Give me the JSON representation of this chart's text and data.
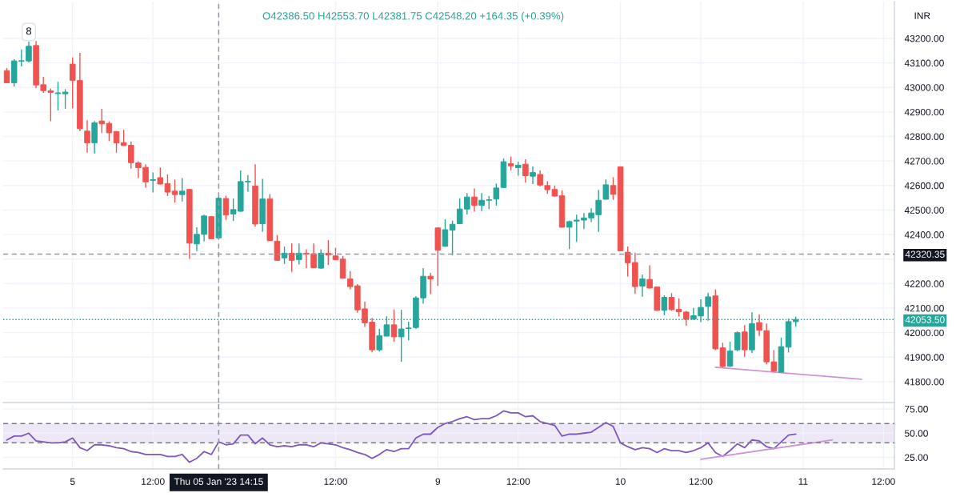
{
  "chart_data": [
    {
      "type": "candlestick",
      "annotations": [
        "O42386.50 H42553.70 L42381.75 C42548.20 +164.35 (+0.39%)",
        "8"
      ],
      "ylabel": "INR",
      "categories": [
        null,
        null,
        null,
        null,
        null,
        null,
        null,
        null,
        null,
        "5",
        null,
        null,
        null,
        null,
        null,
        null,
        null,
        null,
        null,
        null,
        "12:00",
        null,
        null,
        null,
        null,
        null,
        null,
        null,
        null,
        "Thu 05 Jan '23 14:15",
        null,
        null,
        null,
        null,
        null,
        null,
        null,
        null,
        null,
        null,
        null,
        null,
        null,
        null,
        null,
        "12:00",
        null,
        null,
        null,
        null,
        null,
        null,
        null,
        null,
        null,
        null,
        null,
        null,
        null,
        "9",
        null,
        null,
        null,
        null,
        null,
        null,
        null,
        null,
        null,
        null,
        "12:00",
        null,
        null,
        null,
        null,
        null,
        null,
        null,
        null,
        null,
        null,
        null,
        null,
        null,
        "10",
        null,
        null,
        null,
        null,
        null,
        null,
        null,
        null,
        null,
        null,
        "12:00",
        null,
        null,
        null,
        null,
        null,
        null,
        null,
        null,
        null,
        null,
        null,
        null,
        null,
        "11",
        null,
        null,
        null,
        null,
        null,
        null,
        null,
        null,
        null,
        null,
        "12:00",
        null
      ],
      "ohlc": [
        [
          43068,
          43079,
          43018,
          43019
        ],
        [
          43019,
          43115,
          43003,
          43108
        ],
        [
          43107,
          43155,
          43086,
          43109
        ],
        [
          43108,
          43187,
          43102,
          43168
        ],
        [
          43171,
          43189,
          42997,
          43010
        ],
        [
          43011,
          43043,
          42978,
          42987
        ],
        [
          42986,
          42996,
          42862,
          42980
        ],
        [
          42975,
          43023,
          42906,
          42978
        ],
        [
          42974,
          42993,
          42913,
          42981
        ],
        [
          43095,
          43122,
          42915,
          43029
        ],
        [
          43028,
          43141,
          42821,
          42832
        ],
        [
          42822,
          42866,
          42734,
          42774
        ],
        [
          42774,
          42863,
          42731,
          42856
        ],
        [
          42863,
          42913,
          42814,
          42852
        ],
        [
          42853,
          42862,
          42781,
          42815
        ],
        [
          42820,
          42822,
          42734,
          42774
        ],
        [
          42775,
          42827,
          42762,
          42763
        ],
        [
          42764,
          42780,
          42669,
          42693
        ],
        [
          42692,
          42699,
          42630,
          42673
        ],
        [
          42674,
          42687,
          42591,
          42615
        ],
        [
          42621,
          42653,
          42572,
          42624
        ],
        [
          42632,
          42674,
          42604,
          42606
        ],
        [
          42608,
          42645,
          42557,
          42573
        ],
        [
          42577,
          42624,
          42531,
          42563
        ],
        [
          42563,
          42630,
          42535,
          42577
        ],
        [
          42584,
          42586,
          42301,
          42365
        ],
        [
          42362,
          42430,
          42333,
          42401
        ],
        [
          42401,
          42481,
          42372,
          42476
        ],
        [
          42473,
          42476,
          42382,
          42383
        ],
        [
          42386.5,
          42553.7,
          42381.75,
          42548.2
        ],
        [
          42547,
          42558,
          42460,
          42480
        ],
        [
          42484,
          42547,
          42455,
          42502
        ],
        [
          42495,
          42661,
          42493,
          42616
        ],
        [
          42615,
          42643,
          42575,
          42617
        ],
        [
          42598,
          42687,
          42432,
          42443
        ],
        [
          42444,
          42627,
          42412,
          42545
        ],
        [
          42545,
          42565,
          42374,
          42375
        ],
        [
          42373,
          42398,
          42293,
          42295
        ],
        [
          42305,
          42351,
          42280,
          42324
        ],
        [
          42324,
          42364,
          42248,
          42295
        ],
        [
          42298,
          42364,
          42278,
          42324
        ],
        [
          42324,
          42340,
          42263,
          42320
        ],
        [
          42322,
          42364,
          42264,
          42265
        ],
        [
          42263,
          42340,
          42261,
          42324
        ],
        [
          42324,
          42377,
          42276,
          42317
        ],
        [
          42313,
          42346,
          42297,
          42298
        ],
        [
          42300,
          42313,
          42220,
          42222
        ],
        [
          42219,
          42251,
          42177,
          42188
        ],
        [
          42191,
          42198,
          42081,
          42093
        ],
        [
          42097,
          42126,
          42023,
          42040
        ],
        [
          42043,
          42060,
          41920,
          41930
        ],
        [
          41930,
          42015,
          41923,
          41988
        ],
        [
          41986,
          42067,
          41985,
          42032
        ],
        [
          42032,
          42095,
          41963,
          41983
        ],
        [
          41983,
          42093,
          41881,
          42015
        ],
        [
          42017,
          42045,
          41969,
          42019
        ],
        [
          42021,
          42149,
          42015,
          42142
        ],
        [
          42142,
          42263,
          42118,
          42230
        ],
        [
          42230,
          42244,
          42157,
          42219
        ],
        [
          42427,
          42430,
          42191,
          42337
        ],
        [
          42352,
          42462,
          42351,
          42420
        ],
        [
          42418,
          42457,
          42315,
          42442
        ],
        [
          42444,
          42548,
          42443,
          42504
        ],
        [
          42504,
          42569,
          42482,
          42553
        ],
        [
          42553,
          42588,
          42493,
          42519
        ],
        [
          42519,
          42569,
          42496,
          42540
        ],
        [
          42540,
          42557,
          42504,
          42542
        ],
        [
          42545,
          42608,
          42518,
          42590
        ],
        [
          42592,
          42711,
          42591,
          42697
        ],
        [
          42689,
          42718,
          42662,
          42680
        ],
        [
          42673,
          42697,
          42640,
          42683
        ],
        [
          42687,
          42707,
          42612,
          42640
        ],
        [
          42638,
          42678,
          42606,
          42653
        ],
        [
          42645,
          42662,
          42596,
          42602
        ],
        [
          42600,
          42617,
          42566,
          42583
        ],
        [
          42584,
          42600,
          42553,
          42557
        ],
        [
          42558,
          42580,
          42429,
          42430
        ],
        [
          42430,
          42457,
          42341,
          42453
        ],
        [
          42455,
          42481,
          42370,
          42459
        ],
        [
          42459,
          42488,
          42422,
          42468
        ],
        [
          42468,
          42507,
          42451,
          42488
        ],
        [
          42481,
          42582,
          42411,
          42540
        ],
        [
          42544,
          42625,
          42543,
          42603
        ],
        [
          42600,
          42634,
          42542,
          42564
        ],
        [
          42676,
          42678,
          42333,
          42334
        ],
        [
          42328,
          42351,
          42229,
          42285
        ],
        [
          42286,
          42326,
          42158,
          42188
        ],
        [
          42190,
          42237,
          42147,
          42219
        ],
        [
          42217,
          42275,
          42180,
          42182
        ],
        [
          42186,
          42188,
          42089,
          42091
        ],
        [
          42091,
          42152,
          42071,
          42144
        ],
        [
          42144,
          42161,
          42089,
          42094
        ],
        [
          42095,
          42140,
          42066,
          42085
        ],
        [
          42084,
          42089,
          42028,
          42055
        ],
        [
          42055,
          42101,
          42053,
          42069
        ],
        [
          42068,
          42136,
          42043,
          42103
        ],
        [
          42107,
          42163,
          42049,
          42146
        ],
        [
          42150,
          42176,
          41929,
          41934
        ],
        [
          41938,
          41959,
          41858,
          41862
        ],
        [
          41863,
          41963,
          41860,
          41925
        ],
        [
          41930,
          42005,
          41924,
          42000
        ],
        [
          42003,
          42031,
          41901,
          41930
        ],
        [
          41930,
          42083,
          41917,
          42037
        ],
        [
          42041,
          42075,
          41987,
          42010
        ],
        [
          42008,
          42037,
          41871,
          41881
        ],
        [
          41881,
          41929,
          41841,
          41843
        ],
        [
          41839,
          41980,
          41837,
          41943
        ],
        [
          41941,
          42057,
          41919,
          42045
        ],
        [
          42045,
          42065,
          42023,
          42053.5
        ],
        null,
        null,
        null,
        null,
        null,
        null,
        null,
        null,
        null,
        null,
        null,
        null,
        null
      ],
      "colors": [
        "#ef5350",
        "#26a69a",
        "#26a69a",
        "#26a69a",
        "#ef5350",
        "#ef5350",
        "#ef5350",
        "#26a69a",
        "#26a69a",
        "#ef5350",
        "#ef5350",
        "#ef5350",
        "#26a69a",
        "#ef5350",
        "#ef5350",
        "#ef5350",
        "#ef5350",
        "#ef5350",
        "#ef5350",
        "#ef5350",
        "#26a69a",
        "#ef5350",
        "#ef5350",
        "#ef5350",
        "#26a69a",
        "#ef5350",
        "#26a69a",
        "#26a69a",
        "#ef5350",
        "#26a69a",
        "#ef5350",
        "#26a69a",
        "#26a69a",
        "#26a69a",
        "#ef5350",
        "#26a69a",
        "#ef5350",
        "#ef5350",
        "#26a69a",
        "#ef5350",
        "#26a69a",
        "#ef5350",
        "#ef5350",
        "#26a69a",
        "#ef5350",
        "#ef5350",
        "#ef5350",
        "#ef5350",
        "#ef5350",
        "#ef5350",
        "#ef5350",
        "#26a69a",
        "#26a69a",
        "#ef5350",
        "#26a69a",
        "#26a69a",
        "#26a69a",
        "#26a69a",
        "#ef5350",
        "#ef5350",
        "#26a69a",
        "#26a69a",
        "#26a69a",
        "#26a69a",
        "#ef5350",
        "#26a69a",
        "#26a69a",
        "#26a69a",
        "#26a69a",
        "#ef5350",
        "#26a69a",
        "#ef5350",
        "#26a69a",
        "#ef5350",
        "#ef5350",
        "#ef5350",
        "#ef5350",
        "#26a69a",
        "#26a69a",
        "#26a69a",
        "#26a69a",
        "#26a69a",
        "#26a69a",
        "#ef5350",
        "#ef5350",
        "#ef5350",
        "#ef5350",
        "#26a69a",
        "#ef5350",
        "#ef5350",
        "#26a69a",
        "#ef5350",
        "#ef5350",
        "#ef5350",
        "#26a69a",
        "#26a69a",
        "#26a69a",
        "#ef5350",
        "#ef5350",
        "#26a69a",
        "#26a69a",
        "#ef5350",
        "#26a69a",
        "#ef5350",
        "#ef5350",
        "#ef5350",
        "#26a69a",
        "#26a69a",
        "#26a69a",
        null,
        null,
        null,
        null,
        null,
        null,
        null,
        null,
        null,
        null,
        null,
        null,
        null
      ],
      "series": [
        {
          "type": "line",
          "color": "#ce93d8",
          "values": [
            null,
            null,
            null,
            null,
            null,
            null,
            null,
            null,
            null,
            null,
            null,
            null,
            null,
            null,
            null,
            null,
            null,
            null,
            null,
            null,
            null,
            null,
            null,
            null,
            null,
            null,
            null,
            null,
            null,
            null,
            null,
            null,
            null,
            null,
            null,
            null,
            null,
            null,
            null,
            null,
            null,
            null,
            null,
            null,
            null,
            null,
            null,
            null,
            null,
            null,
            null,
            null,
            null,
            null,
            null,
            null,
            null,
            null,
            null,
            null,
            null,
            null,
            null,
            null,
            null,
            null,
            null,
            null,
            null,
            null,
            null,
            null,
            null,
            null,
            null,
            null,
            null,
            null,
            null,
            null,
            null,
            null,
            null,
            null,
            null,
            null,
            null,
            null,
            null,
            null,
            null,
            null,
            null,
            null,
            null,
            null,
            null,
            41859,
            null,
            null,
            null,
            null,
            null,
            null,
            null,
            null,
            null,
            null,
            null,
            null,
            null,
            null,
            null,
            null,
            null,
            null,
            null,
            41810,
            null,
            null,
            null,
            null
          ]
        }
      ],
      "ylim": [
        41715,
        43350
      ],
      "yticks": [
        {
          "value": 41800,
          "label": "41800.00"
        },
        {
          "value": 41900,
          "label": "41900.00"
        },
        {
          "value": 42000,
          "label": "42000.00"
        },
        {
          "value": 42100,
          "label": "42100.00"
        },
        {
          "value": 42200,
          "label": "42200.00"
        },
        {
          "value": 42300,
          "label": null
        },
        {
          "value": 42400,
          "label": "42400.00"
        },
        {
          "value": 42500,
          "label": "42500.00"
        },
        {
          "value": 42600,
          "label": "42600.00"
        },
        {
          "value": 42700,
          "label": "42700.00"
        },
        {
          "value": 42800,
          "label": "42800.00"
        },
        {
          "value": 42900,
          "label": "42900.00"
        },
        {
          "value": 43000,
          "label": "43000.00"
        },
        {
          "value": 43100,
          "label": "43100.00"
        },
        {
          "value": 43200,
          "label": "43200.00"
        }
      ],
      "ref_lines": [
        {
          "axis": "x",
          "value": "Thu 05 Jan '23 14:15",
          "color": "#9598a1",
          "line_style": "dashed"
        },
        {
          "axis": "y",
          "value": 42320.35,
          "label": "42320.35",
          "color": "#9598a1",
          "line_style": "dashed"
        },
        {
          "axis": "y",
          "value": 42053.5,
          "label": "42053.50",
          "color": "#26a69a",
          "line_style": "dotted"
        }
      ],
      "grid": true,
      "tick_labels": "y"
    },
    {
      "type": "line",
      "categories": [
        null,
        null,
        null,
        null,
        null,
        null,
        null,
        null,
        null,
        "5",
        null,
        null,
        null,
        null,
        null,
        null,
        null,
        null,
        null,
        null,
        "12:00",
        null,
        null,
        null,
        null,
        null,
        null,
        null,
        null,
        "Thu 05 Jan '23 14:15",
        null,
        null,
        null,
        null,
        null,
        null,
        null,
        null,
        null,
        null,
        null,
        null,
        null,
        null,
        null,
        "12:00",
        null,
        null,
        null,
        null,
        null,
        null,
        null,
        null,
        null,
        null,
        null,
        null,
        null,
        "9",
        null,
        null,
        null,
        null,
        null,
        null,
        null,
        null,
        null,
        null,
        "12:00",
        null,
        null,
        null,
        null,
        null,
        null,
        null,
        null,
        null,
        null,
        null,
        null,
        null,
        "10",
        null,
        null,
        null,
        null,
        null,
        null,
        null,
        null,
        null,
        null,
        "12:00",
        null,
        null,
        null,
        null,
        null,
        null,
        null,
        null,
        null,
        null,
        null,
        null,
        null,
        "11",
        null,
        null,
        null,
        null,
        null,
        null,
        null,
        null,
        null,
        null,
        "12:00",
        null
      ],
      "series": [
        {
          "color": "#7e57c2",
          "values": [
            43,
            47,
            47,
            50,
            42,
            41,
            40,
            40,
            41,
            45,
            35,
            32,
            38,
            38,
            37,
            35,
            34,
            31,
            30,
            28,
            28,
            28,
            26,
            26,
            28,
            20,
            24,
            31,
            28,
            41,
            38,
            39,
            48,
            48,
            39,
            45,
            38,
            36,
            37,
            36,
            38,
            38,
            36,
            40,
            39,
            38,
            35,
            33,
            30,
            28,
            24,
            28,
            33,
            31,
            34,
            34,
            45,
            49,
            49,
            56,
            60,
            62,
            65,
            67,
            64,
            65,
            65,
            68,
            73,
            71,
            71,
            67,
            68,
            62,
            60,
            58,
            47,
            49,
            49,
            50,
            51,
            56,
            61,
            57,
            40,
            36,
            33,
            35,
            34,
            30,
            34,
            32,
            32,
            30,
            32,
            35,
            40,
            30,
            26,
            32,
            39,
            35,
            43,
            42,
            36,
            34,
            41,
            48,
            49,
            null,
            null,
            null,
            null,
            null,
            null,
            null,
            null,
            null,
            null,
            null,
            null,
            null
          ]
        },
        {
          "color": "#ce93d8",
          "values": [
            null,
            null,
            null,
            null,
            null,
            null,
            null,
            null,
            null,
            null,
            null,
            null,
            null,
            null,
            null,
            null,
            null,
            null,
            null,
            null,
            null,
            null,
            null,
            null,
            null,
            null,
            null,
            null,
            null,
            null,
            null,
            null,
            null,
            null,
            null,
            null,
            null,
            null,
            null,
            null,
            null,
            null,
            null,
            null,
            null,
            null,
            null,
            null,
            null,
            null,
            null,
            null,
            null,
            null,
            null,
            null,
            null,
            null,
            null,
            null,
            null,
            null,
            null,
            null,
            null,
            null,
            null,
            null,
            null,
            null,
            null,
            null,
            null,
            null,
            null,
            null,
            null,
            null,
            null,
            null,
            null,
            null,
            null,
            null,
            null,
            null,
            null,
            null,
            null,
            null,
            null,
            null,
            null,
            null,
            null,
            23,
            null,
            null,
            null,
            null,
            null,
            null,
            null,
            null,
            null,
            null,
            null,
            null,
            null,
            null,
            null,
            null,
            null,
            43,
            null,
            null,
            null,
            null,
            null,
            null,
            null,
            null
          ]
        }
      ],
      "ylim": [
        13,
        80
      ],
      "yticks": [
        {
          "value": 25,
          "label": "25.00"
        },
        {
          "value": 50,
          "label": "50.00"
        },
        {
          "value": 75,
          "label": "75.00"
        }
      ],
      "bands": [
        {
          "axis": "y",
          "from": 40,
          "to": 60,
          "color": "#ede7f6"
        }
      ],
      "ref_lines": [
        {
          "axis": "y",
          "value": 60,
          "color": "#787b86",
          "line_style": "dashed"
        },
        {
          "axis": "y",
          "value": 40,
          "color": "#787b86",
          "line_style": "dashed"
        },
        {
          "axis": "x",
          "value": "Thu 05 Jan '23 14:15",
          "color": "#9598a1",
          "line_style": "dashed"
        }
      ],
      "grid": true
    }
  ]
}
